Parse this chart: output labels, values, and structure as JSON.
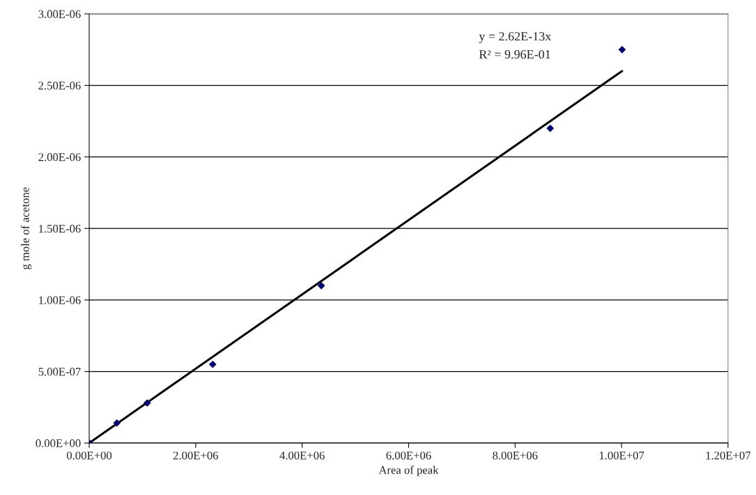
{
  "chart_data": {
    "type": "scatter",
    "xlabel": "Area of peak",
    "ylabel": "g mole of acetone",
    "annotations": [
      "y = 2.62E-13x",
      "R² = 9.96E-01"
    ],
    "series": [
      {
        "color": "#000080",
        "marker": "diamond",
        "x": [
          0,
          520000,
          1090000,
          2320000,
          4360000,
          8660000,
          10010000
        ],
        "values": [
          0,
          1.4e-07,
          2.8e-07,
          5.5e-07,
          1.1e-06,
          2.2e-06,
          2.75e-06
        ]
      },
      {
        "type": "line",
        "color": "#000000",
        "line_style": "solid",
        "marker": "none",
        "x": [
          0,
          10010000
        ],
        "values": [
          0,
          2.6e-06
        ]
      }
    ],
    "xlim": [
      0,
      12000000
    ],
    "ylim": [
      0,
      3e-06
    ],
    "xticks": [
      {
        "value": 0,
        "label": "0.00E+00"
      },
      {
        "value": 2000000,
        "label": "2.00E+06"
      },
      {
        "value": 4000000,
        "label": "4.00E+06"
      },
      {
        "value": 6000000,
        "label": "6.00E+06"
      },
      {
        "value": 8000000,
        "label": "8.00E+06"
      },
      {
        "value": 10000000,
        "label": "1.00E+07"
      },
      {
        "value": 12000000,
        "label": "1.20E+07"
      }
    ],
    "yticks": [
      {
        "value": 0,
        "label": "0.00E+00"
      },
      {
        "value": 5e-07,
        "label": "5.00E-07"
      },
      {
        "value": 1e-06,
        "label": "1.00E-06"
      },
      {
        "value": 1.5e-06,
        "label": "1.50E-06"
      },
      {
        "value": 2e-06,
        "label": "2.00E-06"
      },
      {
        "value": 2.5e-06,
        "label": "2.50E-06"
      },
      {
        "value": 3e-06,
        "label": "3.00E-06"
      }
    ],
    "grid": "y",
    "legend": false
  }
}
